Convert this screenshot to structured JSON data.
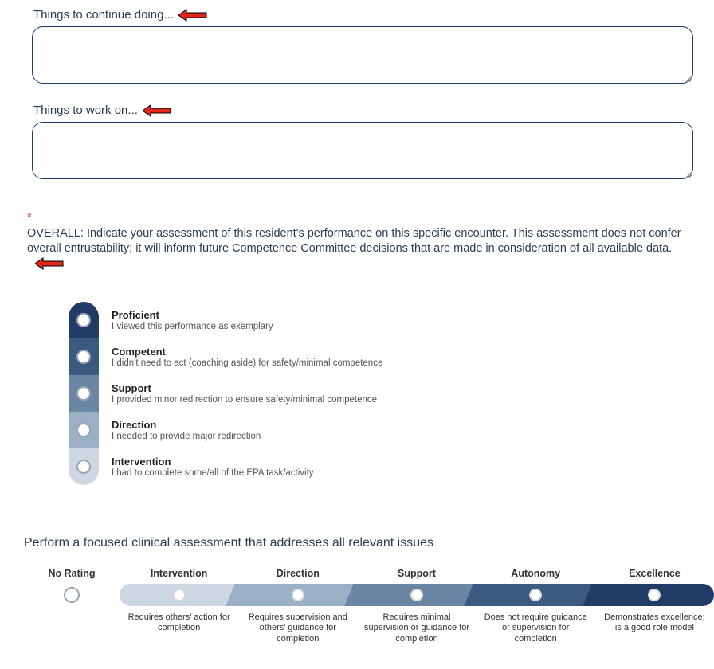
{
  "fields": {
    "continue_label": "Things to continue doing...",
    "workon_label": "Things to work on..."
  },
  "overall": {
    "star": "*",
    "text": "OVERALL: Indicate your assessment of this resident's performance on this specific encounter. This assessment does not confer overall entrustability; it will inform future Competence Committee decisions that are made in consideration of all available data."
  },
  "arrow_color": "#e1261c",
  "vscale": {
    "levels": [
      {
        "title": "Proficient",
        "desc": "I viewed this performance as exemplary",
        "bg": "#1f3b66"
      },
      {
        "title": "Competent",
        "desc": "I didn't need to act (coaching aside) for safety/minimal competence",
        "bg": "#3b5a80"
      },
      {
        "title": "Support",
        "desc": "I provided minor redirection to ensure safety/minimal competence",
        "bg": "#6b86a4"
      },
      {
        "title": "Direction",
        "desc": "I needed to provide major redirection",
        "bg": "#9bb0c5"
      },
      {
        "title": "Intervention",
        "desc": "I had to complete some/all of the EPA task/activity",
        "bg": "#cdd7e1"
      }
    ]
  },
  "hscale": {
    "prompt": "Perform a focused clinical assessment that addresses all relevant issues",
    "no_rating_label": "No Rating",
    "levels": [
      {
        "title": "Intervention",
        "desc": "Requires others' action for completion",
        "bg": "#cdd7e1"
      },
      {
        "title": "Direction",
        "desc": "Requires supervision and others' guidance for completion",
        "bg": "#9bb0c5"
      },
      {
        "title": "Support",
        "desc": "Requires minimal supervision or guidance for completion",
        "bg": "#6b86a4"
      },
      {
        "title": "Autonomy",
        "desc": "Does not require guidance or supervision for completion",
        "bg": "#3b5a80"
      },
      {
        "title": "Excellence",
        "desc": "Demonstrates excellence; is a good role model",
        "bg": "#1f3b66"
      }
    ]
  }
}
